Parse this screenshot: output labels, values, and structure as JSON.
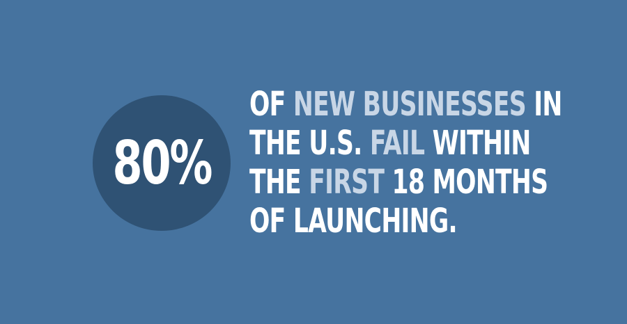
{
  "stat": {
    "value": "80%"
  },
  "headline": {
    "lines": [
      [
        {
          "text": "OF ",
          "highlight": false
        },
        {
          "text": "NEW BUSINESSES",
          "highlight": true
        },
        {
          "text": " IN",
          "highlight": false
        }
      ],
      [
        {
          "text": "THE U.S. ",
          "highlight": false
        },
        {
          "text": "FAIL",
          "highlight": true
        },
        {
          "text": " WITHIN",
          "highlight": false
        }
      ],
      [
        {
          "text": "THE ",
          "highlight": false
        },
        {
          "text": "FIRST",
          "highlight": true
        },
        {
          "text": " 18 MONTHS",
          "highlight": false
        }
      ],
      [
        {
          "text": "OF LAUNCHING.",
          "highlight": false
        }
      ]
    ]
  },
  "colors": {
    "background": "#46739f",
    "circle": "#2f5274",
    "text": "#ffffff",
    "highlight": "#c8d6e6"
  }
}
